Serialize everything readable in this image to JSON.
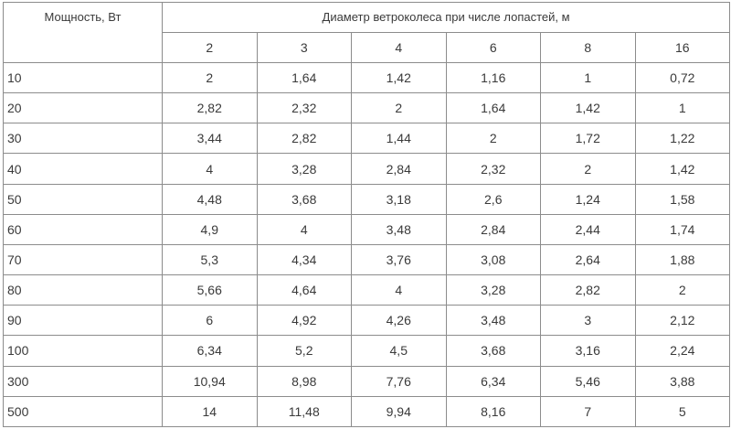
{
  "table": {
    "header_power": "Мощность, Вт",
    "header_diameter": "Диаметр ветроколеса при числе лопастей, м",
    "blades": [
      "2",
      "3",
      "4",
      "6",
      "8",
      "16"
    ],
    "rows": [
      {
        "power": "10",
        "values": [
          "2",
          "1,64",
          "1,42",
          "1,16",
          "1",
          "0,72"
        ]
      },
      {
        "power": "20",
        "values": [
          "2,82",
          "2,32",
          "2",
          "1,64",
          "1,42",
          "1"
        ]
      },
      {
        "power": "30",
        "values": [
          "3,44",
          "2,82",
          "1,44",
          "2",
          "1,72",
          "1,22"
        ]
      },
      {
        "power": "40",
        "values": [
          "4",
          "3,28",
          "2,84",
          "2,32",
          "2",
          "1,42"
        ]
      },
      {
        "power": "50",
        "values": [
          "4,48",
          "3,68",
          "3,18",
          "2,6",
          "1,24",
          "1,58"
        ]
      },
      {
        "power": "60",
        "values": [
          "4,9",
          "4",
          "3,48",
          "2,84",
          "2,44",
          "1,74"
        ]
      },
      {
        "power": "70",
        "values": [
          "5,3",
          "4,34",
          "3,76",
          "3,08",
          "2,64",
          "1,88"
        ]
      },
      {
        "power": "80",
        "values": [
          "5,66",
          "4,64",
          "4",
          "3,28",
          "2,82",
          "2"
        ]
      },
      {
        "power": "90",
        "values": [
          "6",
          "4,92",
          "4,26",
          "3,48",
          "3",
          "2,12"
        ]
      },
      {
        "power": "100",
        "values": [
          "6,34",
          "5,2",
          "4,5",
          "3,68",
          "3,16",
          "2,24"
        ]
      },
      {
        "power": "300",
        "values": [
          "10,94",
          "8,98",
          "7,76",
          "6,34",
          "5,46",
          "3,88"
        ]
      },
      {
        "power": "500",
        "values": [
          "14",
          "11,48",
          "9,94",
          "8,16",
          "7",
          "5"
        ]
      }
    ]
  }
}
